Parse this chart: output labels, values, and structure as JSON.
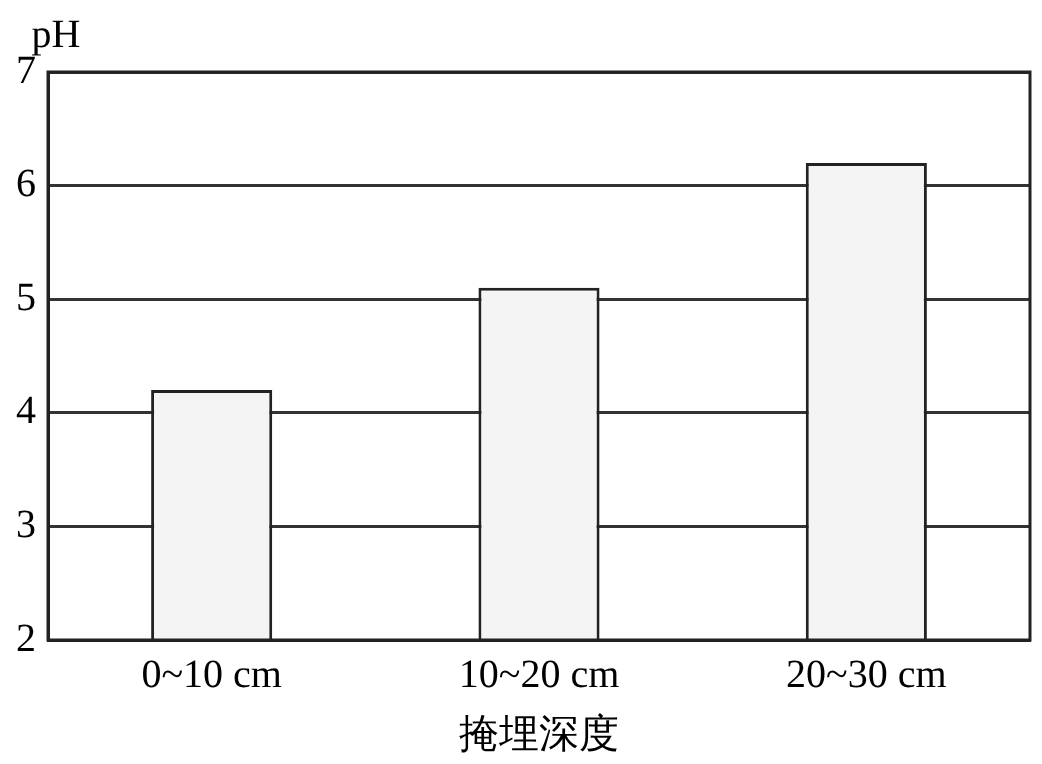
{
  "chart_data": {
    "type": "bar",
    "ylabel": "pH",
    "xlabel": "掩埋深度",
    "categories": [
      "0~10 cm",
      "10~20 cm",
      "20~30 cm"
    ],
    "values": [
      4.2,
      5.1,
      6.2
    ],
    "color": "#f4f4f4",
    "ylim": [
      2,
      7
    ],
    "yticks": [
      2,
      3,
      4,
      5,
      6,
      7
    ],
    "grid": "y"
  }
}
